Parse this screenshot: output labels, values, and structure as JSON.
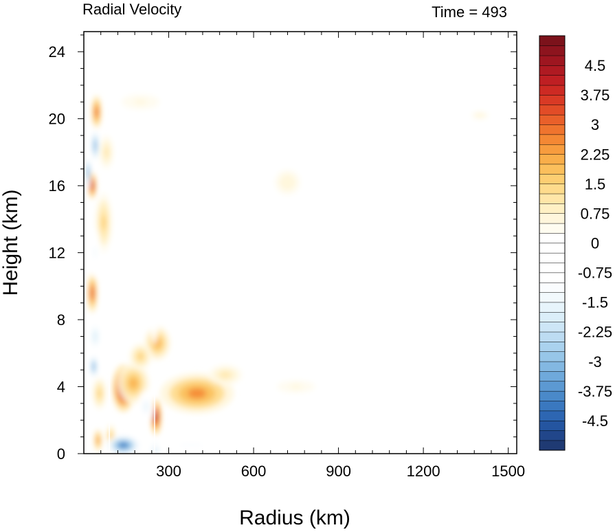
{
  "chart_data": {
    "type": "heatmap",
    "title_left": "Radial Velocity",
    "title_right": "Time = 493",
    "xlabel": "Radius (km)",
    "ylabel": "Height (km)",
    "xlim": [
      0,
      1530
    ],
    "ylim": [
      0,
      25.2
    ],
    "x_ticks": [
      "300",
      "600",
      "900",
      "1200",
      "1500"
    ],
    "x_tick_values": [
      300,
      600,
      900,
      1200,
      1500
    ],
    "y_ticks": [
      "0",
      "4",
      "8",
      "12",
      "16",
      "20",
      "24"
    ],
    "y_tick_values": [
      0,
      4,
      8,
      12,
      16,
      20,
      24
    ],
    "colorbar": {
      "min": -5.25,
      "max": 5.25,
      "step": 0.25,
      "tick_labels": [
        "4.5",
        "3.75",
        "3",
        "2.25",
        "1.5",
        "0.75",
        "0",
        "-0.75",
        "-1.5",
        "-2.25",
        "-3",
        "-3.75",
        "-4.5"
      ],
      "tick_values": [
        4.5,
        3.75,
        3,
        2.25,
        1.5,
        0.75,
        0,
        -0.75,
        -1.5,
        -2.25,
        -3,
        -3.75,
        -4.5
      ],
      "colors": [
        "#1f3a73",
        "#21468a",
        "#2455a0",
        "#2d66b2",
        "#3a78bf",
        "#4a89c9",
        "#5c99d2",
        "#6fa9db",
        "#83b8e2",
        "#97c6e8",
        "#aad2ee",
        "#bddcf2",
        "#cde6f6",
        "#dbeef9",
        "#e7f4fb",
        "#f2f9fd",
        "#fafcfe",
        "#ffffff",
        "#ffffff",
        "#ffffff",
        "#ffffff",
        "#ffffff",
        "#fffcf0",
        "#fff6dc",
        "#fff0c4",
        "#ffe6a8",
        "#fedb8c",
        "#fdce72",
        "#fbbf5c",
        "#f9ae4a",
        "#f79c3e",
        "#f48834",
        "#ef742e",
        "#e9602a",
        "#e24c27",
        "#d93a25",
        "#cd2a23",
        "#bf1f23",
        "#af1a22",
        "#9e1620",
        "#8d141e",
        "#7c121b"
      ]
    },
    "features": [
      {
        "x": 140,
        "y": 3.9,
        "rx": 40,
        "ry": 1.4,
        "v": 4.8
      },
      {
        "x": 255,
        "y": 2.2,
        "rx": 20,
        "ry": 1.1,
        "v": 4.4
      },
      {
        "x": 175,
        "y": 4.2,
        "rx": 55,
        "ry": 1.2,
        "v": 2.0
      },
      {
        "x": 400,
        "y": 3.6,
        "rx": 130,
        "ry": 1.2,
        "v": 2.6
      },
      {
        "x": 500,
        "y": 4.7,
        "rx": 60,
        "ry": 0.6,
        "v": 1.2
      },
      {
        "x": 260,
        "y": 6.6,
        "rx": 45,
        "ry": 1.0,
        "v": 2.2
      },
      {
        "x": 200,
        "y": 5.8,
        "rx": 40,
        "ry": 0.8,
        "v": 1.6
      },
      {
        "x": 30,
        "y": 16.0,
        "rx": 14,
        "ry": 0.8,
        "v": 4.2
      },
      {
        "x": 30,
        "y": 9.6,
        "rx": 18,
        "ry": 1.2,
        "v": 3.4
      },
      {
        "x": 45,
        "y": 20.4,
        "rx": 18,
        "ry": 1.0,
        "v": 3.0
      },
      {
        "x": 70,
        "y": 13.8,
        "rx": 30,
        "ry": 1.8,
        "v": 1.5
      },
      {
        "x": 80,
        "y": 18.0,
        "rx": 25,
        "ry": 1.0,
        "v": 1.0
      },
      {
        "x": 55,
        "y": 3.6,
        "rx": 25,
        "ry": 1.0,
        "v": 1.5
      },
      {
        "x": 50,
        "y": 0.8,
        "rx": 15,
        "ry": 0.7,
        "v": 2.6
      },
      {
        "x": 95,
        "y": 1.0,
        "rx": 18,
        "ry": 0.8,
        "v": 1.8
      },
      {
        "x": 720,
        "y": 16.2,
        "rx": 60,
        "ry": 1.0,
        "v": 0.7
      },
      {
        "x": 1400,
        "y": 20.2,
        "rx": 40,
        "ry": 0.3,
        "v": 0.7
      },
      {
        "x": 750,
        "y": 4.0,
        "rx": 90,
        "ry": 0.5,
        "v": 0.6
      },
      {
        "x": 200,
        "y": 21.0,
        "rx": 90,
        "ry": 0.6,
        "v": 0.6
      },
      {
        "x": 40,
        "y": 18.4,
        "rx": 15,
        "ry": 1.1,
        "v": -3.4
      },
      {
        "x": 15,
        "y": 16.8,
        "rx": 10,
        "ry": 1.0,
        "v": -3.8
      },
      {
        "x": 40,
        "y": 12.0,
        "rx": 20,
        "ry": 1.5,
        "v": -1.3
      },
      {
        "x": 40,
        "y": 7.0,
        "rx": 30,
        "ry": 1.2,
        "v": -1.8
      },
      {
        "x": 35,
        "y": 5.2,
        "rx": 15,
        "ry": 0.8,
        "v": -3.4
      },
      {
        "x": 140,
        "y": 0.5,
        "rx": 60,
        "ry": 0.6,
        "v": -4.2
      },
      {
        "x": 255,
        "y": 0.4,
        "rx": 25,
        "ry": 0.5,
        "v": -4.0
      },
      {
        "x": 220,
        "y": 2.8,
        "rx": 30,
        "ry": 1.0,
        "v": -1.6
      },
      {
        "x": 380,
        "y": 0.5,
        "rx": 170,
        "ry": 0.45,
        "v": -1.2
      },
      {
        "x": 250,
        "y": 11.5,
        "rx": 20,
        "ry": 5.0,
        "v": -0.8
      },
      {
        "x": 600,
        "y": 17.0,
        "rx": 70,
        "ry": 3.0,
        "v": -0.6
      },
      {
        "x": 420,
        "y": 16.5,
        "rx": 40,
        "ry": 4.0,
        "v": -0.6
      },
      {
        "x": 130,
        "y": 9.0,
        "rx": 50,
        "ry": 1.8,
        "v": -0.9
      }
    ],
    "boundaries": [
      {
        "x": 90,
        "y_top": 5.3
      },
      {
        "x": 250,
        "y_top": 4.0
      }
    ]
  }
}
